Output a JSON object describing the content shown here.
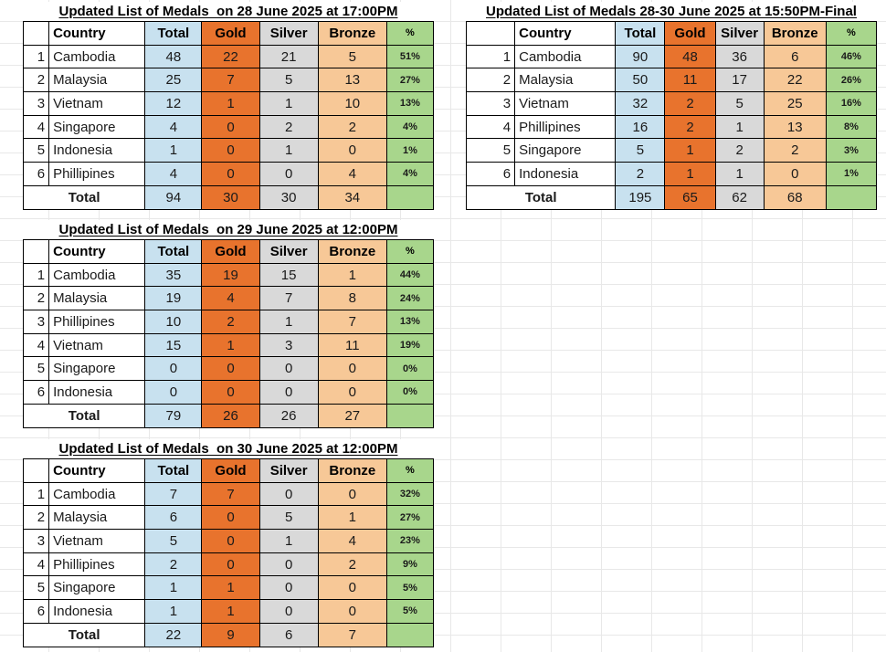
{
  "colors": {
    "blue": "#C8E1EF",
    "gold": "#E8732D",
    "silver": "#D9D9D9",
    "bronze": "#F7C897",
    "green": "#A8D68C",
    "gridline": "#E8E8E8"
  },
  "tables": [
    {
      "title": "Updated List of Medals  on 28 June 2025 at 17:00PM",
      "headers": [
        "Country",
        "Total",
        "Gold",
        "Silver",
        "Bronze",
        "%"
      ],
      "rows": [
        {
          "rank": "1",
          "country": "Cambodia",
          "total": "48",
          "gold": "22",
          "silver": "21",
          "bronze": "5",
          "percent": "51%"
        },
        {
          "rank": "2",
          "country": "Malaysia",
          "total": "25",
          "gold": "7",
          "silver": "5",
          "bronze": "13",
          "percent": "27%"
        },
        {
          "rank": "3",
          "country": "Vietnam",
          "total": "12",
          "gold": "1",
          "silver": "1",
          "bronze": "10",
          "percent": "13%"
        },
        {
          "rank": "4",
          "country": "Singapore",
          "total": "4",
          "gold": "0",
          "silver": "2",
          "bronze": "2",
          "percent": "4%"
        },
        {
          "rank": "5",
          "country": "Indonesia",
          "total": "1",
          "gold": "0",
          "silver": "1",
          "bronze": "0",
          "percent": "1%"
        },
        {
          "rank": "6",
          "country": "Phillipines",
          "total": "4",
          "gold": "0",
          "silver": "0",
          "bronze": "4",
          "percent": "4%"
        }
      ],
      "total_row": {
        "label": "Total",
        "total": "94",
        "gold": "30",
        "silver": "30",
        "bronze": "34",
        "percent": ""
      }
    },
    {
      "title": "Updated List of Medals 28-30 June 2025 at 15:50PM-Final",
      "headers": [
        "Country",
        "Total",
        "Gold",
        "Silver",
        "Bronze",
        "%"
      ],
      "rows": [
        {
          "rank": "1",
          "country": "Cambodia",
          "total": "90",
          "gold": "48",
          "silver": "36",
          "bronze": "6",
          "percent": "46%"
        },
        {
          "rank": "2",
          "country": "Malaysia",
          "total": "50",
          "gold": "11",
          "silver": "17",
          "bronze": "22",
          "percent": "26%"
        },
        {
          "rank": "3",
          "country": "Vietnam",
          "total": "32",
          "gold": "2",
          "silver": "5",
          "bronze": "25",
          "percent": "16%"
        },
        {
          "rank": "4",
          "country": "Phillipines",
          "total": "16",
          "gold": "2",
          "silver": "1",
          "bronze": "13",
          "percent": "8%"
        },
        {
          "rank": "5",
          "country": "Singapore",
          "total": "5",
          "gold": "1",
          "silver": "2",
          "bronze": "2",
          "percent": "3%"
        },
        {
          "rank": "6",
          "country": "Indonesia",
          "total": "2",
          "gold": "1",
          "silver": "1",
          "bronze": "0",
          "percent": "1%"
        }
      ],
      "total_row": {
        "label": "Total",
        "total": "195",
        "gold": "65",
        "silver": "62",
        "bronze": "68",
        "percent": ""
      }
    },
    {
      "title": "Updated List of Medals  on 29 June 2025 at 12:00PM",
      "headers": [
        "Country",
        "Total",
        "Gold",
        "Silver",
        "Bronze",
        "%"
      ],
      "rows": [
        {
          "rank": "1",
          "country": "Cambodia",
          "total": "35",
          "gold": "19",
          "silver": "15",
          "bronze": "1",
          "percent": "44%"
        },
        {
          "rank": "2",
          "country": "Malaysia",
          "total": "19",
          "gold": "4",
          "silver": "7",
          "bronze": "8",
          "percent": "24%"
        },
        {
          "rank": "3",
          "country": "Phillipines",
          "total": "10",
          "gold": "2",
          "silver": "1",
          "bronze": "7",
          "percent": "13%"
        },
        {
          "rank": "4",
          "country": "Vietnam",
          "total": "15",
          "gold": "1",
          "silver": "3",
          "bronze": "11",
          "percent": "19%"
        },
        {
          "rank": "5",
          "country": "Singapore",
          "total": "0",
          "gold": "0",
          "silver": "0",
          "bronze": "0",
          "percent": "0%"
        },
        {
          "rank": "6",
          "country": "Indonesia",
          "total": "0",
          "gold": "0",
          "silver": "0",
          "bronze": "0",
          "percent": "0%"
        }
      ],
      "total_row": {
        "label": "Total",
        "total": "79",
        "gold": "26",
        "silver": "26",
        "bronze": "27",
        "percent": ""
      }
    },
    {
      "title": "Updated List of Medals  on 30 June 2025 at 12:00PM",
      "headers": [
        "Country",
        "Total",
        "Gold",
        "Silver",
        "Bronze",
        "%"
      ],
      "rows": [
        {
          "rank": "1",
          "country": "Cambodia",
          "total": "7",
          "gold": "7",
          "silver": "0",
          "bronze": "0",
          "percent": "32%"
        },
        {
          "rank": "2",
          "country": "Malaysia",
          "total": "6",
          "gold": "0",
          "silver": "5",
          "bronze": "1",
          "percent": "27%"
        },
        {
          "rank": "3",
          "country": "Vietnam",
          "total": "5",
          "gold": "0",
          "silver": "1",
          "bronze": "4",
          "percent": "23%"
        },
        {
          "rank": "4",
          "country": "Phillipines",
          "total": "2",
          "gold": "0",
          "silver": "0",
          "bronze": "2",
          "percent": "9%"
        },
        {
          "rank": "5",
          "country": "Singapore",
          "total": "1",
          "gold": "1",
          "silver": "0",
          "bronze": "0",
          "percent": "5%"
        },
        {
          "rank": "6",
          "country": "Indonesia",
          "total": "1",
          "gold": "1",
          "silver": "0",
          "bronze": "0",
          "percent": "5%"
        }
      ],
      "total_row": {
        "label": "Total",
        "total": "22",
        "gold": "9",
        "silver": "6",
        "bronze": "7",
        "percent": ""
      }
    }
  ]
}
